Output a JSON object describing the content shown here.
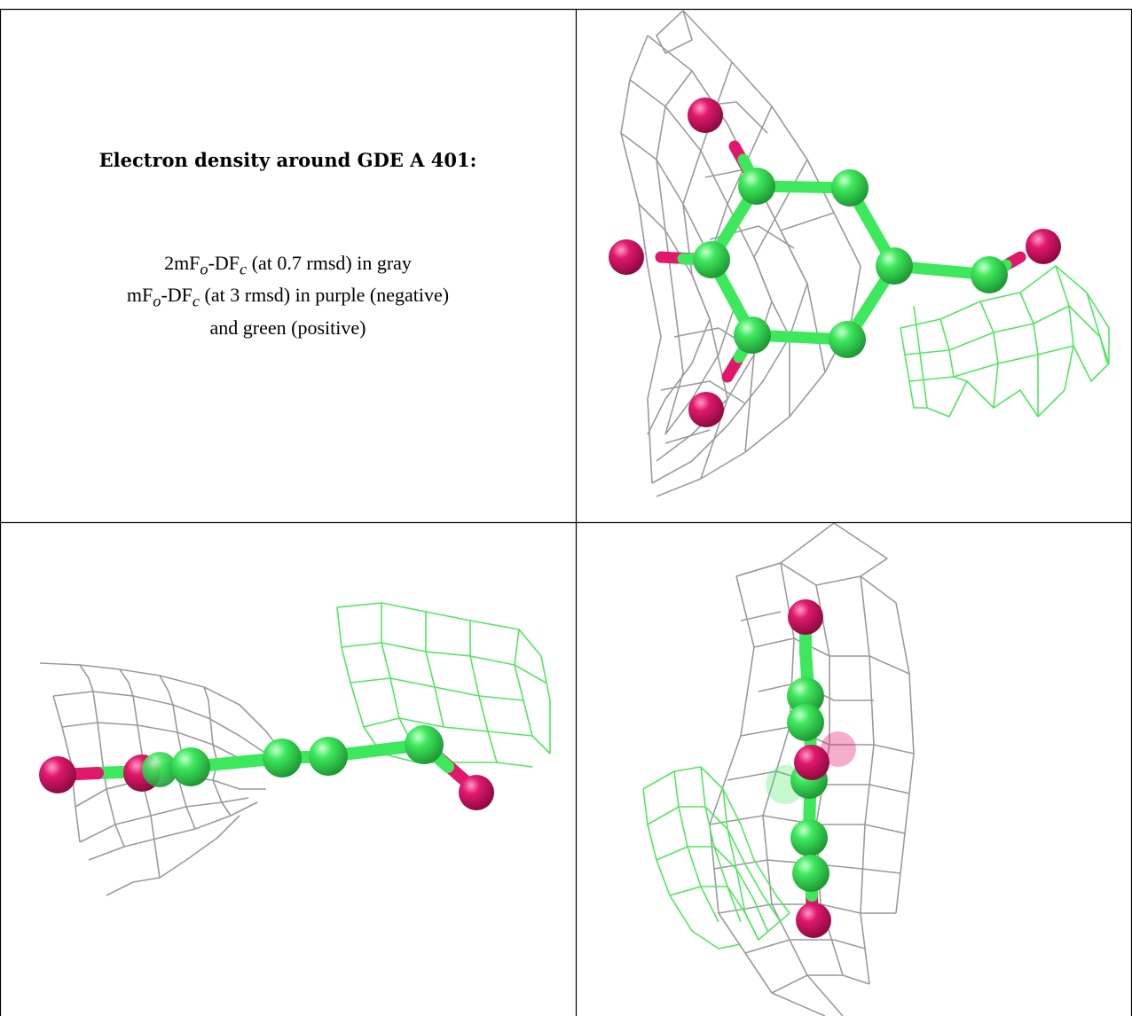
{
  "caption": {
    "title": "Electron density around GDE A 401:",
    "line1": {
      "prefix": "2mF",
      "sub1": "o",
      "mid": "-DF",
      "sub2": "c",
      "suffix": " (at 0.7 rmsd) in gray"
    },
    "line2": {
      "prefix": "mF",
      "sub1": "o",
      "mid": "-DF",
      "sub2": "c",
      "suffix": " (at 3 rmsd) in purple (negative)"
    },
    "line3": "and green (positive)"
  },
  "colors": {
    "carbon": "#3ee85c",
    "oxygen": "#e0186c",
    "density_2fofc": "#9a9a9a",
    "density_positive": "#52e660",
    "border": "#000000"
  },
  "panels": [
    {
      "id": "view-top-right",
      "view": "face-on"
    },
    {
      "id": "view-bottom-left",
      "view": "edge-on horizontal"
    },
    {
      "id": "view-bottom-right",
      "view": "edge-on vertical"
    }
  ]
}
